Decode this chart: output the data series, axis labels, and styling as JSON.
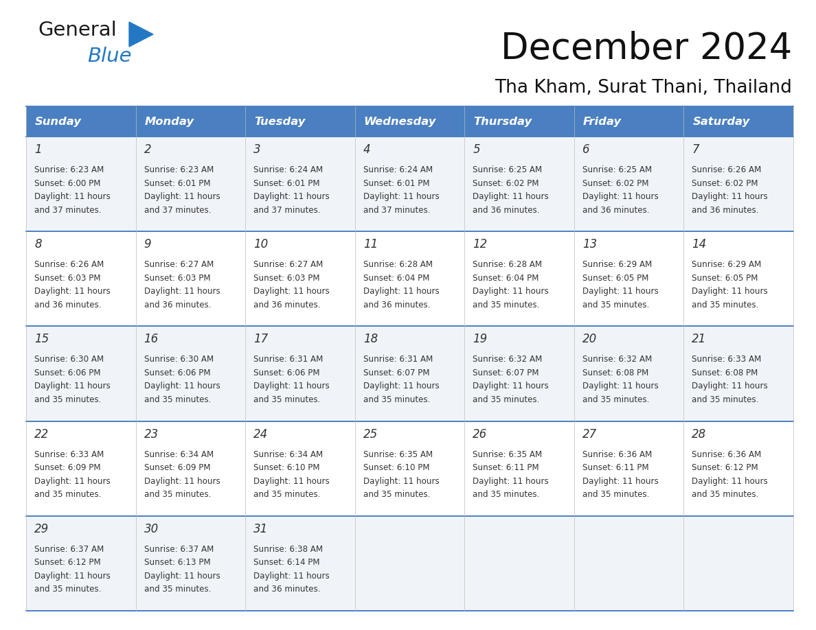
{
  "title": "December 2024",
  "subtitle": "Tha Kham, Surat Thani, Thailand",
  "header_color": "#4a7fc1",
  "header_text_color": "#ffffff",
  "row_bg_colors": [
    "#f0f4f8",
    "#ffffff",
    "#f0f4f8",
    "#ffffff",
    "#f0f4f8"
  ],
  "border_color": "#4a7fc1",
  "text_color": "#333333",
  "day_names": [
    "Sunday",
    "Monday",
    "Tuesday",
    "Wednesday",
    "Thursday",
    "Friday",
    "Saturday"
  ],
  "weeks": [
    [
      {
        "day": 1,
        "sunrise": "6:23 AM",
        "sunset": "6:00 PM",
        "daylight": "11 hours and 37 minutes."
      },
      {
        "day": 2,
        "sunrise": "6:23 AM",
        "sunset": "6:01 PM",
        "daylight": "11 hours and 37 minutes."
      },
      {
        "day": 3,
        "sunrise": "6:24 AM",
        "sunset": "6:01 PM",
        "daylight": "11 hours and 37 minutes."
      },
      {
        "day": 4,
        "sunrise": "6:24 AM",
        "sunset": "6:01 PM",
        "daylight": "11 hours and 37 minutes."
      },
      {
        "day": 5,
        "sunrise": "6:25 AM",
        "sunset": "6:02 PM",
        "daylight": "11 hours and 36 minutes."
      },
      {
        "day": 6,
        "sunrise": "6:25 AM",
        "sunset": "6:02 PM",
        "daylight": "11 hours and 36 minutes."
      },
      {
        "day": 7,
        "sunrise": "6:26 AM",
        "sunset": "6:02 PM",
        "daylight": "11 hours and 36 minutes."
      }
    ],
    [
      {
        "day": 8,
        "sunrise": "6:26 AM",
        "sunset": "6:03 PM",
        "daylight": "11 hours and 36 minutes."
      },
      {
        "day": 9,
        "sunrise": "6:27 AM",
        "sunset": "6:03 PM",
        "daylight": "11 hours and 36 minutes."
      },
      {
        "day": 10,
        "sunrise": "6:27 AM",
        "sunset": "6:03 PM",
        "daylight": "11 hours and 36 minutes."
      },
      {
        "day": 11,
        "sunrise": "6:28 AM",
        "sunset": "6:04 PM",
        "daylight": "11 hours and 36 minutes."
      },
      {
        "day": 12,
        "sunrise": "6:28 AM",
        "sunset": "6:04 PM",
        "daylight": "11 hours and 35 minutes."
      },
      {
        "day": 13,
        "sunrise": "6:29 AM",
        "sunset": "6:05 PM",
        "daylight": "11 hours and 35 minutes."
      },
      {
        "day": 14,
        "sunrise": "6:29 AM",
        "sunset": "6:05 PM",
        "daylight": "11 hours and 35 minutes."
      }
    ],
    [
      {
        "day": 15,
        "sunrise": "6:30 AM",
        "sunset": "6:06 PM",
        "daylight": "11 hours and 35 minutes."
      },
      {
        "day": 16,
        "sunrise": "6:30 AM",
        "sunset": "6:06 PM",
        "daylight": "11 hours and 35 minutes."
      },
      {
        "day": 17,
        "sunrise": "6:31 AM",
        "sunset": "6:06 PM",
        "daylight": "11 hours and 35 minutes."
      },
      {
        "day": 18,
        "sunrise": "6:31 AM",
        "sunset": "6:07 PM",
        "daylight": "11 hours and 35 minutes."
      },
      {
        "day": 19,
        "sunrise": "6:32 AM",
        "sunset": "6:07 PM",
        "daylight": "11 hours and 35 minutes."
      },
      {
        "day": 20,
        "sunrise": "6:32 AM",
        "sunset": "6:08 PM",
        "daylight": "11 hours and 35 minutes."
      },
      {
        "day": 21,
        "sunrise": "6:33 AM",
        "sunset": "6:08 PM",
        "daylight": "11 hours and 35 minutes."
      }
    ],
    [
      {
        "day": 22,
        "sunrise": "6:33 AM",
        "sunset": "6:09 PM",
        "daylight": "11 hours and 35 minutes."
      },
      {
        "day": 23,
        "sunrise": "6:34 AM",
        "sunset": "6:09 PM",
        "daylight": "11 hours and 35 minutes."
      },
      {
        "day": 24,
        "sunrise": "6:34 AM",
        "sunset": "6:10 PM",
        "daylight": "11 hours and 35 minutes."
      },
      {
        "day": 25,
        "sunrise": "6:35 AM",
        "sunset": "6:10 PM",
        "daylight": "11 hours and 35 minutes."
      },
      {
        "day": 26,
        "sunrise": "6:35 AM",
        "sunset": "6:11 PM",
        "daylight": "11 hours and 35 minutes."
      },
      {
        "day": 27,
        "sunrise": "6:36 AM",
        "sunset": "6:11 PM",
        "daylight": "11 hours and 35 minutes."
      },
      {
        "day": 28,
        "sunrise": "6:36 AM",
        "sunset": "6:12 PM",
        "daylight": "11 hours and 35 minutes."
      }
    ],
    [
      {
        "day": 29,
        "sunrise": "6:37 AM",
        "sunset": "6:12 PM",
        "daylight": "11 hours and 35 minutes."
      },
      {
        "day": 30,
        "sunrise": "6:37 AM",
        "sunset": "6:13 PM",
        "daylight": "11 hours and 35 minutes."
      },
      {
        "day": 31,
        "sunrise": "6:38 AM",
        "sunset": "6:14 PM",
        "daylight": "11 hours and 36 minutes."
      },
      null,
      null,
      null,
      null
    ]
  ],
  "logo_color_general": "#1a1a1a",
  "logo_color_blue": "#2278c3",
  "logo_triangle_color": "#2278c3",
  "fig_width": 11.88,
  "fig_height": 9.18,
  "dpi": 100
}
